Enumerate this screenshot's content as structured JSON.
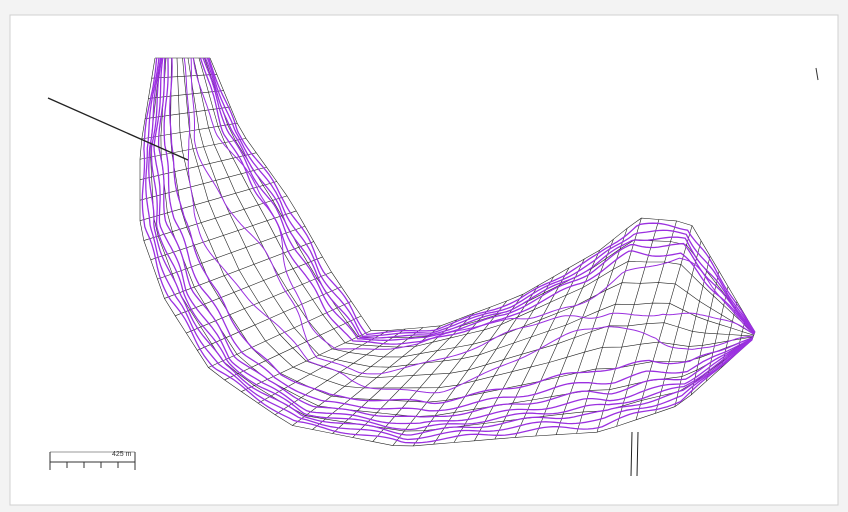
{
  "scale_bar": {
    "label": "425 m"
  }
}
